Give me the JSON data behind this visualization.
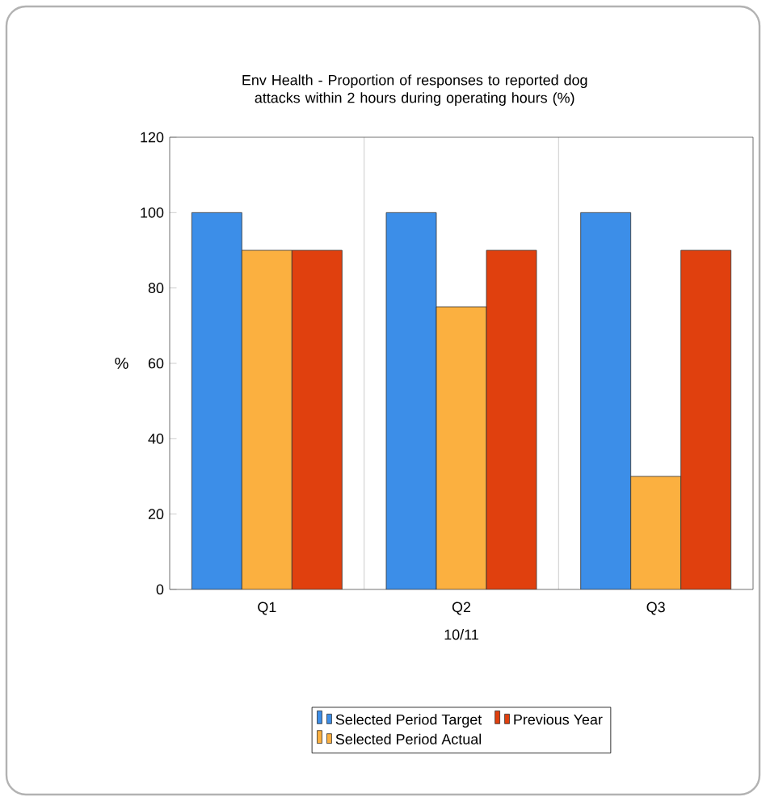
{
  "chart_data": {
    "type": "bar",
    "title": "Env Health - Proportion of responses to reported dog attacks within 2 hours during operating hours (%)",
    "categories": [
      "Q1",
      "Q2",
      "Q3"
    ],
    "xlabel": "10/11",
    "ylabel": "%",
    "series": [
      {
        "name": "Selected Period Target",
        "color": "#3c8ee8",
        "values": [
          100,
          100,
          100
        ]
      },
      {
        "name": "Selected Period Actual",
        "color": "#fbb040",
        "values": [
          90,
          75,
          30
        ]
      },
      {
        "name": "Previous Year",
        "color": "#e0400e",
        "values": [
          90,
          90,
          90
        ]
      }
    ],
    "ylim": [
      0,
      120
    ],
    "yticks": [
      0,
      20,
      40,
      60,
      80,
      100,
      120
    ],
    "grid": "x",
    "legend": "bottom"
  }
}
